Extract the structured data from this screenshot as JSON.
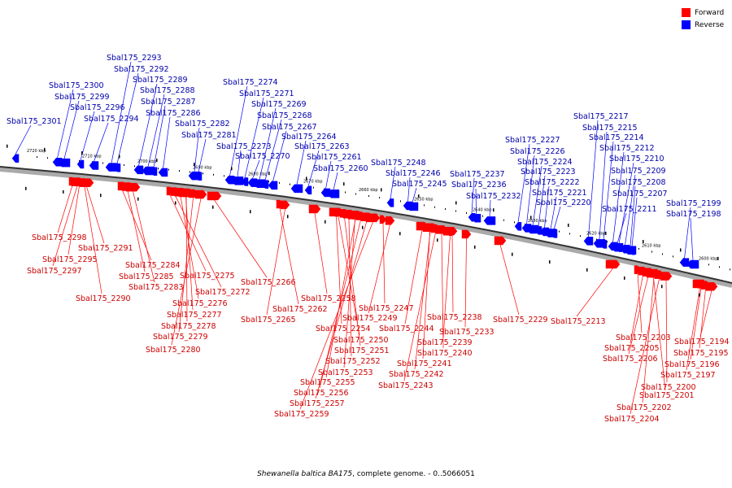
{
  "legend": {
    "items": [
      {
        "label": "Forward",
        "color": "#ff0000"
      },
      {
        "label": "Reverse",
        "color": "#0000ff"
      }
    ]
  },
  "caption": {
    "organism": "Shewanella baltica BA175",
    "suffix": ", complete genome. - 0..5066051"
  },
  "colors": {
    "forward": "#ff0000",
    "reverse": "#0000ff",
    "backbone": "#333333",
    "forward_label": "#cc0000",
    "reverse_label": "#0000aa"
  },
  "scale_ticks": [
    "2720 kbp",
    "2710 kbp",
    "2700 kbp",
    "2690 kbp",
    "2680 kbp",
    "2670 kbp",
    "2660 kbp",
    "2650 kbp",
    "2640 kbp",
    "2630 kbp",
    "2620 kbp",
    "2610 kbp",
    "2600 kbp"
  ],
  "reverse_genes": [
    "Sbal175_2301",
    "Sbal175_2300",
    "Sbal175_2299",
    "Sbal175_2296",
    "Sbal175_2294",
    "Sbal175_2293",
    "Sbal175_2292",
    "Sbal175_2289",
    "Sbal175_2288",
    "Sbal175_2287",
    "Sbal175_2286",
    "Sbal175_2282",
    "Sbal175_2281",
    "Sbal175_2274",
    "Sbal175_2273",
    "Sbal175_2271",
    "Sbal175_2270",
    "Sbal175_2269",
    "Sbal175_2268",
    "Sbal175_2267",
    "Sbal175_2264",
    "Sbal175_2263",
    "Sbal175_2261",
    "Sbal175_2260",
    "Sbal175_2248",
    "Sbal175_2246",
    "Sbal175_2245",
    "Sbal175_2237",
    "Sbal175_2236",
    "Sbal175_2232",
    "Sbal175_2227",
    "Sbal175_2226",
    "Sbal175_2224",
    "Sbal175_2223",
    "Sbal175_2222",
    "Sbal175_2221",
    "Sbal175_2220",
    "Sbal175_2217",
    "Sbal175_2215",
    "Sbal175_2214",
    "Sbal175_2212",
    "Sbal175_2211",
    "Sbal175_2210",
    "Sbal175_2209",
    "Sbal175_2208",
    "Sbal175_2207",
    "Sbal175_2199",
    "Sbal175_2198"
  ],
  "forward_genes": [
    "Sbal175_2298",
    "Sbal175_2295",
    "Sbal175_2297",
    "Sbal175_2291",
    "Sbal175_2290",
    "Sbal175_2284",
    "Sbal175_2285",
    "Sbal175_2283",
    "Sbal175_2275",
    "Sbal175_2272",
    "Sbal175_2276",
    "Sbal175_2277",
    "Sbal175_2278",
    "Sbal175_2279",
    "Sbal175_2280",
    "Sbal175_2266",
    "Sbal175_2262",
    "Sbal175_2265",
    "Sbal175_2258",
    "Sbal175_2254",
    "Sbal175_2250",
    "Sbal175_2251",
    "Sbal175_2252",
    "Sbal175_2253",
    "Sbal175_2255",
    "Sbal175_2256",
    "Sbal175_2257",
    "Sbal175_2259",
    "Sbal175_2247",
    "Sbal175_2249",
    "Sbal175_2244",
    "Sbal175_2241",
    "Sbal175_2242",
    "Sbal175_2243",
    "Sbal175_2240",
    "Sbal175_2239",
    "Sbal175_2238",
    "Sbal175_2233",
    "Sbal175_2229",
    "Sbal175_2213",
    "Sbal175_2203",
    "Sbal175_2205",
    "Sbal175_2206",
    "Sbal175_2201",
    "Sbal175_2202",
    "Sbal175_2204",
    "Sbal175_2200",
    "Sbal175_2197",
    "Sbal175_2196",
    "Sbal175_2195",
    "Sbal175_2194"
  ]
}
